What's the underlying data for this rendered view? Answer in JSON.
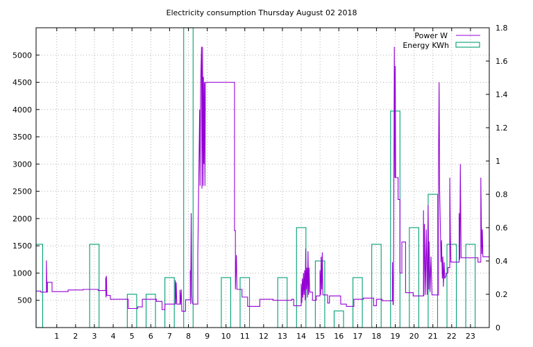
{
  "chart_data": {
    "type": "line",
    "title": "Electricity consumption Thursday August 02 2018",
    "xlabel": "",
    "ylabel": "",
    "y2label": "",
    "xlim": [
      -0.1,
      24.0
    ],
    "ylim": [
      0,
      5500
    ],
    "y2lim": [
      0,
      1.8
    ],
    "xticks": [
      1,
      2,
      3,
      4,
      5,
      6,
      7,
      8,
      9,
      10,
      11,
      12,
      13,
      14,
      15,
      16,
      17,
      18,
      19,
      20,
      21,
      22,
      23
    ],
    "yticks": [
      500,
      1000,
      1500,
      2000,
      2500,
      3000,
      3500,
      4000,
      4500,
      5000
    ],
    "y2ticks": [
      0,
      0.2,
      0.4,
      0.6,
      0.8,
      1,
      1.2,
      1.4,
      1.6,
      1.8
    ],
    "grid": true,
    "legend_position": "top-right",
    "colors": {
      "power": "#9400d3",
      "energy": "#009e73"
    },
    "series": [
      {
        "name": "Power W",
        "type": "line",
        "axis": "left",
        "points": [
          [
            -0.1,
            670
          ],
          [
            0.15,
            670
          ],
          [
            0.15,
            650
          ],
          [
            0.45,
            650
          ],
          [
            0.45,
            1230
          ],
          [
            0.48,
            650
          ],
          [
            0.5,
            650
          ],
          [
            0.5,
            830
          ],
          [
            0.75,
            830
          ],
          [
            0.75,
            660
          ],
          [
            1.6,
            660
          ],
          [
            1.6,
            690
          ],
          [
            2.4,
            690
          ],
          [
            2.4,
            700
          ],
          [
            3.2,
            700
          ],
          [
            3.2,
            680
          ],
          [
            3.6,
            680
          ],
          [
            3.6,
            920
          ],
          [
            3.62,
            550
          ],
          [
            3.64,
            950
          ],
          [
            3.66,
            590
          ],
          [
            3.85,
            590
          ],
          [
            3.85,
            520
          ],
          [
            4.8,
            520
          ],
          [
            4.8,
            350
          ],
          [
            5.3,
            350
          ],
          [
            5.3,
            380
          ],
          [
            5.55,
            380
          ],
          [
            5.55,
            520
          ],
          [
            6.3,
            520
          ],
          [
            6.3,
            480
          ],
          [
            6.6,
            480
          ],
          [
            6.6,
            330
          ],
          [
            6.75,
            330
          ],
          [
            6.75,
            430
          ],
          [
            7.3,
            430
          ],
          [
            7.3,
            870
          ],
          [
            7.32,
            430
          ],
          [
            7.35,
            830
          ],
          [
            7.38,
            430
          ],
          [
            7.55,
            430
          ],
          [
            7.55,
            690
          ],
          [
            7.58,
            420
          ],
          [
            7.62,
            700
          ],
          [
            7.65,
            300
          ],
          [
            7.85,
            300
          ],
          [
            7.85,
            510
          ],
          [
            8.1,
            510
          ],
          [
            8.1,
            1050
          ],
          [
            8.12,
            430
          ],
          [
            8.15,
            2100
          ],
          [
            8.18,
            600
          ],
          [
            8.2,
            460
          ],
          [
            8.25,
            430
          ],
          [
            8.5,
            430
          ],
          [
            8.5,
            1300
          ],
          [
            8.55,
            2700
          ],
          [
            8.6,
            4000
          ],
          [
            8.62,
            2600
          ],
          [
            8.65,
            4500
          ],
          [
            8.7,
            5150
          ],
          [
            8.72,
            2550
          ],
          [
            8.75,
            5150
          ],
          [
            8.78,
            2600
          ],
          [
            8.8,
            4600
          ],
          [
            8.82,
            3000
          ],
          [
            8.85,
            4500
          ],
          [
            8.88,
            2600
          ],
          [
            8.9,
            4500
          ],
          [
            8.95,
            4500
          ],
          [
            10.45,
            4500
          ],
          [
            10.45,
            1780
          ],
          [
            10.5,
            1780
          ],
          [
            10.5,
            700
          ],
          [
            10.55,
            1330
          ],
          [
            10.58,
            700
          ],
          [
            10.85,
            700
          ],
          [
            10.85,
            560
          ],
          [
            11.15,
            560
          ],
          [
            11.15,
            390
          ],
          [
            11.8,
            390
          ],
          [
            11.8,
            520
          ],
          [
            12.5,
            520
          ],
          [
            12.5,
            500
          ],
          [
            13.5,
            500
          ],
          [
            13.5,
            520
          ],
          [
            13.6,
            520
          ],
          [
            13.6,
            400
          ],
          [
            14.0,
            400
          ],
          [
            14.0,
            800
          ],
          [
            14.03,
            450
          ],
          [
            14.06,
            900
          ],
          [
            14.09,
            550
          ],
          [
            14.12,
            1000
          ],
          [
            14.15,
            600
          ],
          [
            14.18,
            1050
          ],
          [
            14.21,
            500
          ],
          [
            14.24,
            1450
          ],
          [
            14.27,
            700
          ],
          [
            14.3,
            1100
          ],
          [
            14.33,
            550
          ],
          [
            14.36,
            1400
          ],
          [
            14.39,
            600
          ],
          [
            14.42,
            1100
          ],
          [
            14.45,
            650
          ],
          [
            14.6,
            650
          ],
          [
            14.6,
            500
          ],
          [
            14.8,
            500
          ],
          [
            14.8,
            580
          ],
          [
            15.0,
            580
          ],
          [
            15.0,
            1050
          ],
          [
            15.03,
            600
          ],
          [
            15.06,
            1300
          ],
          [
            15.09,
            700
          ],
          [
            15.12,
            1380
          ],
          [
            15.15,
            600
          ],
          [
            15.4,
            600
          ],
          [
            15.4,
            450
          ],
          [
            15.5,
            450
          ],
          [
            15.5,
            580
          ],
          [
            16.1,
            580
          ],
          [
            16.1,
            430
          ],
          [
            16.4,
            430
          ],
          [
            16.4,
            390
          ],
          [
            16.8,
            390
          ],
          [
            16.8,
            520
          ],
          [
            17.3,
            520
          ],
          [
            17.3,
            540
          ],
          [
            17.85,
            540
          ],
          [
            17.85,
            400
          ],
          [
            18.0,
            400
          ],
          [
            18.0,
            520
          ],
          [
            18.3,
            520
          ],
          [
            18.3,
            490
          ],
          [
            18.85,
            490
          ],
          [
            18.85,
            1200
          ],
          [
            18.88,
            420
          ],
          [
            18.9,
            420
          ],
          [
            18.92,
            2300
          ],
          [
            18.95,
            5150
          ],
          [
            18.98,
            2750
          ],
          [
            19.0,
            4800
          ],
          [
            19.02,
            2750
          ],
          [
            19.15,
            2750
          ],
          [
            19.15,
            2350
          ],
          [
            19.25,
            2350
          ],
          [
            19.25,
            1000
          ],
          [
            19.35,
            1000
          ],
          [
            19.35,
            1570
          ],
          [
            19.55,
            1570
          ],
          [
            19.55,
            640
          ],
          [
            19.95,
            640
          ],
          [
            19.95,
            580
          ],
          [
            20.5,
            580
          ],
          [
            20.5,
            2150
          ],
          [
            20.52,
            580
          ],
          [
            20.55,
            1900
          ],
          [
            20.6,
            600
          ],
          [
            20.65,
            1800
          ],
          [
            20.7,
            600
          ],
          [
            20.75,
            2250
          ],
          [
            20.78,
            700
          ],
          [
            20.8,
            1580
          ],
          [
            20.85,
            650
          ],
          [
            20.9,
            1300
          ],
          [
            20.95,
            600
          ],
          [
            21.3,
            600
          ],
          [
            21.3,
            3000
          ],
          [
            21.33,
            4500
          ],
          [
            21.36,
            2500
          ],
          [
            21.4,
            1800
          ],
          [
            21.43,
            1200
          ],
          [
            21.46,
            1600
          ],
          [
            21.5,
            900
          ],
          [
            21.53,
            1300
          ],
          [
            21.56,
            750
          ],
          [
            21.6,
            1200
          ],
          [
            21.63,
            900
          ],
          [
            21.7,
            950
          ],
          [
            21.7,
            1000
          ],
          [
            21.8,
            1000
          ],
          [
            21.8,
            1100
          ],
          [
            21.9,
            1100
          ],
          [
            21.9,
            2750
          ],
          [
            21.93,
            1700
          ],
          [
            21.96,
            1200
          ],
          [
            22.4,
            1200
          ],
          [
            22.4,
            2100
          ],
          [
            22.43,
            1250
          ],
          [
            22.46,
            3000
          ],
          [
            22.5,
            1280
          ],
          [
            22.5,
            1280
          ],
          [
            23.4,
            1280
          ],
          [
            23.4,
            1200
          ],
          [
            23.55,
            1200
          ],
          [
            23.55,
            2750
          ],
          [
            23.58,
            1900
          ],
          [
            23.6,
            1350
          ],
          [
            23.63,
            1800
          ],
          [
            23.66,
            1300
          ],
          [
            24.0,
            1300
          ]
        ]
      },
      {
        "name": "Energy KWh",
        "type": "bar",
        "axis": "right",
        "categories": [
          0,
          1,
          2,
          3,
          4,
          5,
          6,
          7,
          8,
          9,
          10,
          11,
          12,
          13,
          14,
          15,
          16,
          17,
          18,
          19,
          20,
          21,
          22,
          23
        ],
        "values": [
          0.5,
          0.0,
          0.0,
          0.5,
          0.0,
          0.2,
          0.2,
          0.3,
          1.8,
          0.0,
          0.3,
          0.3,
          0.0,
          0.3,
          0.6,
          0.4,
          0.1,
          0.3,
          0.5,
          1.3,
          0.6,
          0.8,
          0.5,
          0.5
        ]
      }
    ]
  }
}
